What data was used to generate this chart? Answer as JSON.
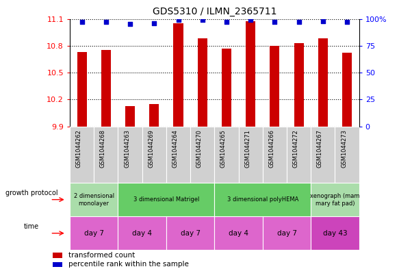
{
  "title": "GDS5310 / ILMN_2365711",
  "samples": [
    "GSM1044262",
    "GSM1044268",
    "GSM1044263",
    "GSM1044269",
    "GSM1044264",
    "GSM1044270",
    "GSM1044265",
    "GSM1044271",
    "GSM1044266",
    "GSM1044272",
    "GSM1044267",
    "GSM1044273"
  ],
  "transformed_counts": [
    10.73,
    10.75,
    10.13,
    10.15,
    11.05,
    10.88,
    10.77,
    11.07,
    10.8,
    10.83,
    10.88,
    10.72
  ],
  "percentile_ranks": [
    97,
    97,
    95,
    96,
    99,
    99,
    97,
    99,
    97,
    97,
    98,
    97
  ],
  "ymin": 9.9,
  "ymax": 11.1,
  "yticks": [
    9.9,
    10.2,
    10.5,
    10.8,
    11.1
  ],
  "right_yticks": [
    0,
    25,
    50,
    75,
    100
  ],
  "bar_color": "#cc0000",
  "dot_color": "#0000cc",
  "growth_protocol_groups": [
    {
      "label": "2 dimensional\nmonolayer",
      "start": 0,
      "end": 2,
      "color": "#aaddaa"
    },
    {
      "label": "3 dimensional Matrigel",
      "start": 2,
      "end": 6,
      "color": "#66cc66"
    },
    {
      "label": "3 dimensional polyHEMA",
      "start": 6,
      "end": 10,
      "color": "#66cc66"
    },
    {
      "label": "xenograph (mam\nmary fat pad)",
      "start": 10,
      "end": 12,
      "color": "#aaddaa"
    }
  ],
  "time_groups": [
    {
      "label": "day 7",
      "start": 0,
      "end": 2,
      "color": "#dd66cc"
    },
    {
      "label": "day 4",
      "start": 2,
      "end": 4,
      "color": "#dd66cc"
    },
    {
      "label": "day 7",
      "start": 4,
      "end": 6,
      "color": "#dd66cc"
    },
    {
      "label": "day 4",
      "start": 6,
      "end": 8,
      "color": "#dd66cc"
    },
    {
      "label": "day 7",
      "start": 8,
      "end": 10,
      "color": "#dd66cc"
    },
    {
      "label": "day 43",
      "start": 10,
      "end": 12,
      "color": "#cc44bb"
    }
  ],
  "sample_bg_color": "#d0d0d0",
  "bar_width": 0.4
}
